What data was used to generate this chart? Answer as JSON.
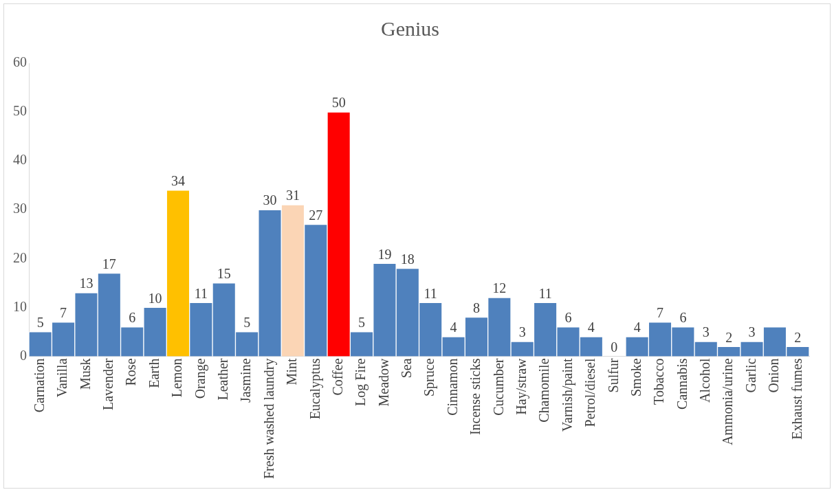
{
  "chart_data": {
    "type": "bar",
    "title": "Genius",
    "categories": [
      "Carnation",
      "Vanilla",
      "Musk",
      "Lavender",
      "Rose",
      "Earth",
      "Lemon",
      "Orange",
      "Leather",
      "Jasmine",
      "Fresh washed laundry",
      "Mint",
      "Eucalyptus",
      "Coffee",
      "Log Fire",
      "Meadow",
      "Sea",
      "Spruce",
      "Cinnamon",
      "Incense sticks",
      "Cucumber",
      "Hay/straw",
      "Chamomile",
      "Varnish/paint",
      "Petrol/diesel",
      "Sulfur",
      "Smoke",
      "Tobacco",
      "Cannabis",
      "Alcohol",
      "Ammonia/urine",
      "Garlic",
      "Onion",
      "Exhaust fumes"
    ],
    "values": [
      5,
      7,
      13,
      17,
      6,
      10,
      34,
      11,
      15,
      5,
      30,
      31,
      27,
      50,
      5,
      19,
      18,
      11,
      4,
      8,
      12,
      3,
      11,
      6,
      4,
      0,
      4,
      7,
      6,
      3,
      2,
      3,
      6,
      2
    ],
    "value_labels": [
      "5",
      "7",
      "13",
      "17",
      "6",
      "10",
      "34",
      "11",
      "15",
      "5",
      "30",
      "31",
      "27",
      "50",
      "5",
      "19",
      "18",
      "11",
      "4",
      "8",
      "12",
      "3",
      "11",
      "6",
      "4",
      "0",
      "4",
      "7",
      "6",
      "3",
      "2",
      "3",
      null,
      "2"
    ],
    "colors": [
      "#4f81bd",
      "#4f81bd",
      "#4f81bd",
      "#4f81bd",
      "#4f81bd",
      "#4f81bd",
      "#ffc000",
      "#4f81bd",
      "#4f81bd",
      "#4f81bd",
      "#4f81bd",
      "#fbd5b5",
      "#4f81bd",
      "#ff0000",
      "#4f81bd",
      "#4f81bd",
      "#4f81bd",
      "#4f81bd",
      "#4f81bd",
      "#4f81bd",
      "#4f81bd",
      "#4f81bd",
      "#4f81bd",
      "#4f81bd",
      "#4f81bd",
      "#4f81bd",
      "#4f81bd",
      "#4f81bd",
      "#4f81bd",
      "#4f81bd",
      "#4f81bd",
      "#4f81bd",
      "#4f81bd",
      "#4f81bd"
    ],
    "ylim": [
      0,
      60
    ],
    "yticks": [
      0,
      10,
      20,
      30,
      40,
      50,
      60
    ],
    "grid": false,
    "legend": false
  }
}
